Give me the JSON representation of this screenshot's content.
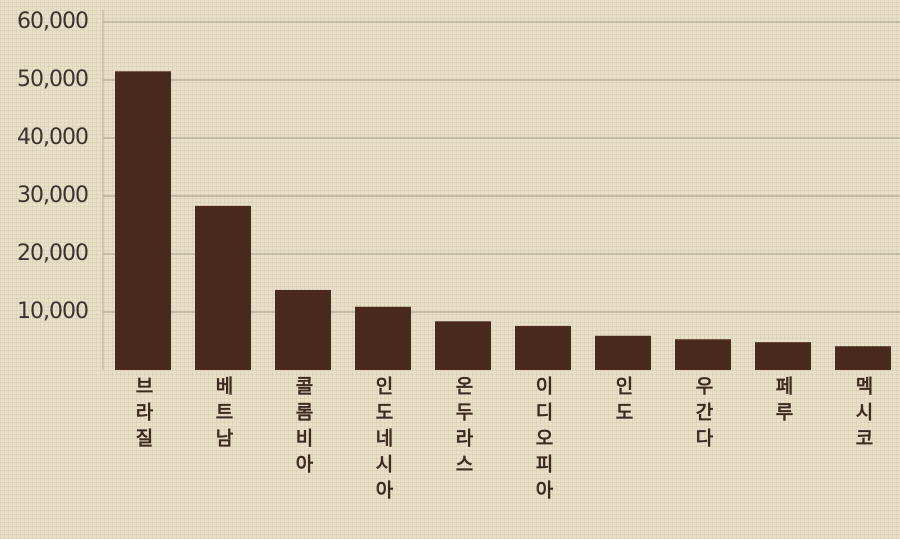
{
  "chart_data": {
    "type": "bar",
    "categories": [
      "브라질",
      "베트남",
      "콜롬비아",
      "인도네시아",
      "온두라스",
      "이디오피아",
      "인도",
      "우간다",
      "페루",
      "멕시코"
    ],
    "values": [
      51500,
      28300,
      13800,
      10900,
      8400,
      7600,
      5900,
      5300,
      4800,
      4100
    ],
    "color": "#4a2a1c",
    "ylim": [
      0,
      60000
    ],
    "yticks": [
      {
        "value": 10000,
        "label": "10,000"
      },
      {
        "value": 20000,
        "label": "20,000"
      },
      {
        "value": 30000,
        "label": "30,000"
      },
      {
        "value": 40000,
        "label": "40,000"
      },
      {
        "value": 50000,
        "label": "50,000"
      },
      {
        "value": 60000,
        "label": "60,000"
      }
    ],
    "grid": true
  }
}
